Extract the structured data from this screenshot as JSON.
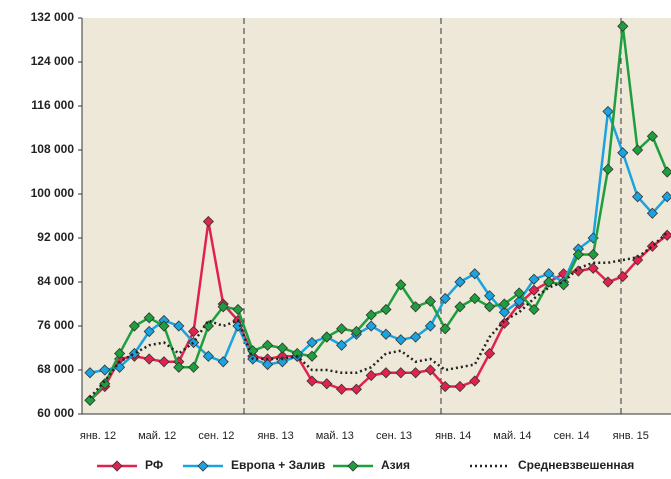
{
  "chart_data": {
    "type": "line",
    "categories": [
      "янв. 12",
      null,
      null,
      null,
      "май. 12",
      null,
      null,
      null,
      "сен. 12",
      null,
      null,
      null,
      "янв. 13",
      null,
      null,
      null,
      "май. 13",
      null,
      null,
      null,
      "сен. 13",
      null,
      null,
      null,
      "янв. 14",
      null,
      null,
      null,
      "май. 14",
      null,
      null,
      null,
      "сен. 14",
      null,
      null,
      null,
      "янв. 15",
      null,
      null,
      null
    ],
    "series": [
      {
        "name": "РФ",
        "color": "#e0234e",
        "marker": true,
        "values": [
          62500,
          65000,
          70000,
          70500,
          70000,
          69500,
          69500,
          75000,
          95000,
          80000,
          77000,
          70500,
          70000,
          70500,
          70500,
          66000,
          65500,
          64500,
          64500,
          67000,
          67500,
          67500,
          67500,
          68000,
          65000,
          65000,
          66000,
          71000,
          76500,
          80000,
          82500,
          84000,
          85500,
          86000,
          86500,
          84000,
          85000,
          88000,
          90500,
          92500
        ]
      },
      {
        "name": "Европа + Залив",
        "color": "#1aa3e0",
        "marker": true,
        "values": [
          67500,
          68000,
          68500,
          71000,
          75000,
          77000,
          76000,
          73000,
          70500,
          69500,
          76000,
          70000,
          69000,
          69500,
          70500,
          73000,
          74000,
          72500,
          74500,
          76000,
          74500,
          73500,
          74000,
          76000,
          81000,
          84000,
          85500,
          81500,
          78500,
          80500,
          84500,
          85500,
          84000,
          90000,
          92000,
          115000,
          107500,
          99500,
          96500,
          99500
        ]
      },
      {
        "name": "Азия",
        "color": "#1e9e3e",
        "marker": true,
        "values": [
          62500,
          65500,
          71000,
          76000,
          77500,
          76000,
          68500,
          68500,
          76000,
          79500,
          79000,
          71500,
          72500,
          72000,
          71000,
          70500,
          74000,
          75500,
          75000,
          78000,
          79000,
          83500,
          79500,
          80500,
          75500,
          79500,
          81000,
          79500,
          80000,
          82000,
          79000,
          84000,
          83500,
          89000,
          89000,
          104500,
          130500,
          108000,
          110500,
          104000
        ]
      },
      {
        "name": "Средневзвешенная",
        "color": "#222222",
        "marker": false,
        "dashed": true,
        "values": [
          63000,
          66000,
          69500,
          71000,
          72500,
          73000,
          71000,
          73000,
          77000,
          76000,
          77000,
          70000,
          70000,
          70000,
          70500,
          68000,
          68000,
          67500,
          67500,
          68500,
          71000,
          71500,
          69500,
          70000,
          68000,
          68500,
          69000,
          74000,
          77000,
          78500,
          81000,
          83000,
          84000,
          86500,
          87500,
          87500,
          88000,
          88500,
          90500,
          93000
        ]
      }
    ],
    "ylim": [
      60000,
      132000
    ],
    "yticks": [
      {
        "value": 60000,
        "label": "60 000"
      },
      {
        "value": 68000,
        "label": "68 000"
      },
      {
        "value": 76000,
        "label": "76 000"
      },
      {
        "value": 84000,
        "label": "84 000"
      },
      {
        "value": 92000,
        "label": "92 000"
      },
      {
        "value": 100000,
        "label": "100 000"
      },
      {
        "value": 108000,
        "label": "108 000"
      },
      {
        "value": 116000,
        "label": "116 000"
      },
      {
        "value": 124000,
        "label": "124 000"
      },
      {
        "value": 132000,
        "label": "132 000"
      }
    ],
    "grid": true
  }
}
